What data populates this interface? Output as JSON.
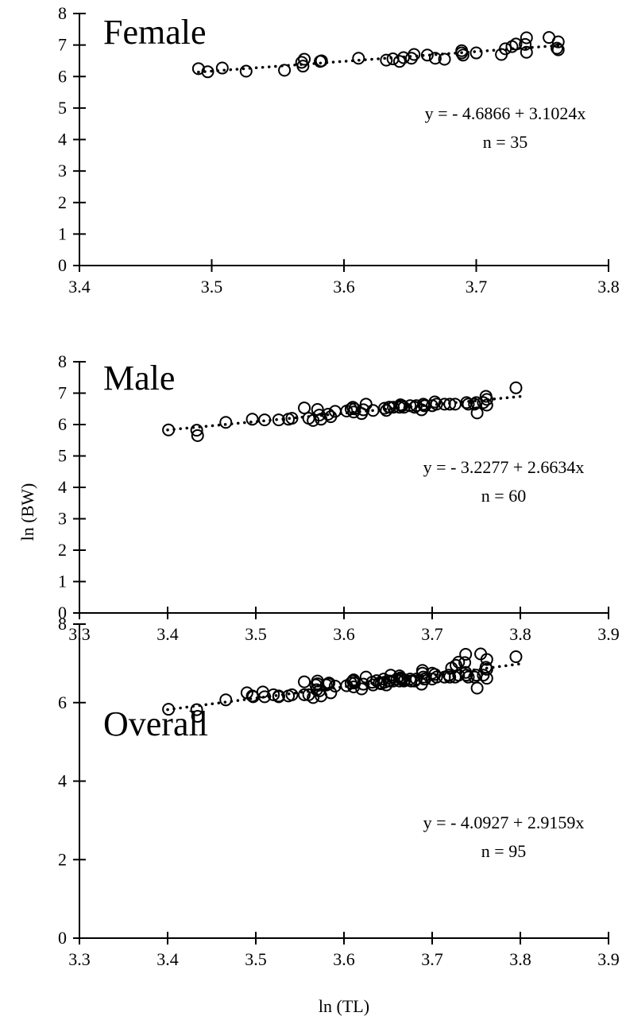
{
  "figure": {
    "xlabel": "ln (TL)",
    "ylabel": "ln (BW)"
  },
  "chart_data": [
    {
      "type": "scatter",
      "title": "Female",
      "xlim": [
        3.4,
        3.8
      ],
      "ylim": [
        0,
        8
      ],
      "xticks": [
        "3.4",
        "3.5",
        "3.6",
        "3.7",
        "3.8"
      ],
      "yticks": [
        "0",
        "1",
        "2",
        "3",
        "4",
        "5",
        "6",
        "7",
        "8"
      ],
      "equation": "y = - 4.6866 + 3.1024x",
      "n_label": "n = 35",
      "fit": {
        "intercept": -4.6866,
        "slope": 3.1024,
        "x_range": [
          3.49,
          3.765
        ]
      },
      "points": {
        "x": [
          3.49,
          3.497,
          3.508,
          3.526,
          3.555,
          3.568,
          3.57,
          3.569,
          3.582,
          3.583,
          3.611,
          3.632,
          3.637,
          3.642,
          3.645,
          3.651,
          3.653,
          3.663,
          3.669,
          3.676,
          3.689,
          3.689,
          3.69,
          3.719,
          3.722,
          3.727,
          3.73,
          3.738,
          3.738,
          3.737,
          3.755,
          3.762,
          3.762,
          3.761,
          3.7
        ],
        "y": [
          6.25,
          6.15,
          6.27,
          6.17,
          6.2,
          6.45,
          6.55,
          6.33,
          6.48,
          6.5,
          6.58,
          6.52,
          6.56,
          6.48,
          6.6,
          6.58,
          6.7,
          6.68,
          6.58,
          6.55,
          6.75,
          6.82,
          6.68,
          6.7,
          6.88,
          6.95,
          7.03,
          7.23,
          6.77,
          7.02,
          7.24,
          6.85,
          7.1,
          6.9,
          6.75
        ]
      }
    },
    {
      "type": "scatter",
      "title": "Male",
      "xlim": [
        3.3,
        3.9
      ],
      "ylim": [
        0,
        8
      ],
      "xticks": [
        "3.3",
        "3.4",
        "3.5",
        "3.6",
        "3.7",
        "3.8",
        "3.9"
      ],
      "yticks": [
        "0",
        "1",
        "2",
        "3",
        "4",
        "5",
        "6",
        "7",
        "8"
      ],
      "equation": "y = - 3.2277 + 2.6634x",
      "n_label": "n = 60",
      "fit": {
        "intercept": -3.2277,
        "slope": 2.6634,
        "x_range": [
          3.4,
          3.8
        ]
      },
      "points": {
        "x": [
          3.401,
          3.433,
          3.434,
          3.466,
          3.496,
          3.51,
          3.526,
          3.537,
          3.541,
          3.555,
          3.565,
          3.57,
          3.572,
          3.574,
          3.582,
          3.585,
          3.59,
          3.603,
          3.608,
          3.611,
          3.612,
          3.622,
          3.625,
          3.633,
          3.646,
          3.648,
          3.651,
          3.652,
          3.656,
          3.663,
          3.664,
          3.665,
          3.666,
          3.668,
          3.675,
          3.68,
          3.682,
          3.688,
          3.69,
          3.691,
          3.692,
          3.7,
          3.703,
          3.705,
          3.714,
          3.72,
          3.726,
          3.739,
          3.741,
          3.748,
          3.75,
          3.751,
          3.758,
          3.761,
          3.762,
          3.762,
          3.795,
          3.61,
          3.62,
          3.56
        ],
        "y": [
          5.83,
          5.82,
          5.65,
          6.07,
          6.17,
          6.15,
          6.15,
          6.17,
          6.2,
          6.53,
          6.13,
          6.48,
          6.3,
          6.17,
          6.33,
          6.25,
          6.42,
          6.43,
          6.5,
          6.4,
          6.5,
          6.47,
          6.65,
          6.45,
          6.52,
          6.45,
          6.55,
          6.55,
          6.55,
          6.55,
          6.63,
          6.6,
          6.6,
          6.55,
          6.6,
          6.55,
          6.6,
          6.47,
          6.65,
          6.6,
          6.6,
          6.6,
          6.72,
          6.65,
          6.65,
          6.65,
          6.65,
          6.7,
          6.65,
          6.65,
          6.7,
          6.37,
          6.7,
          6.9,
          6.8,
          6.62,
          7.17,
          6.55,
          6.35,
          6.2
        ]
      }
    },
    {
      "type": "scatter",
      "title": "Overall",
      "xlim": [
        3.3,
        3.9
      ],
      "ylim": [
        0,
        8
      ],
      "xticks": [
        "3.3",
        "3.4",
        "3.5",
        "3.6",
        "3.7",
        "3.8",
        "3.9"
      ],
      "yticks": [
        "0",
        "2",
        "4",
        "6",
        "8"
      ],
      "equation": "y = - 4.0927 + 2.9159x",
      "n_label": "n = 95",
      "fit": {
        "intercept": -4.0927,
        "slope": 2.9159,
        "x_range": [
          3.4,
          3.8
        ]
      },
      "points": {
        "x": [
          3.401,
          3.433,
          3.434,
          3.466,
          3.49,
          3.496,
          3.497,
          3.508,
          3.51,
          3.526,
          3.526,
          3.537,
          3.541,
          3.555,
          3.555,
          3.565,
          3.568,
          3.57,
          3.569,
          3.57,
          3.572,
          3.574,
          3.582,
          3.583,
          3.585,
          3.59,
          3.603,
          3.608,
          3.611,
          3.611,
          3.612,
          3.622,
          3.625,
          3.632,
          3.633,
          3.637,
          3.642,
          3.645,
          3.646,
          3.648,
          3.651,
          3.652,
          3.653,
          3.656,
          3.663,
          3.663,
          3.664,
          3.665,
          3.666,
          3.668,
          3.669,
          3.675,
          3.676,
          3.68,
          3.682,
          3.688,
          3.689,
          3.689,
          3.69,
          3.691,
          3.692,
          3.7,
          3.703,
          3.705,
          3.714,
          3.719,
          3.72,
          3.722,
          3.726,
          3.727,
          3.73,
          3.738,
          3.738,
          3.739,
          3.741,
          3.748,
          3.75,
          3.751,
          3.755,
          3.758,
          3.761,
          3.762,
          3.762,
          3.762,
          3.795,
          3.61,
          3.62,
          3.56,
          3.73,
          3.737,
          3.7,
          3.64,
          3.52,
          3.58,
          3.66
        ],
        "y": [
          5.83,
          5.82,
          5.65,
          6.07,
          6.25,
          6.17,
          6.15,
          6.27,
          6.15,
          6.17,
          6.15,
          6.17,
          6.2,
          6.53,
          6.2,
          6.13,
          6.45,
          6.55,
          6.33,
          6.48,
          6.3,
          6.17,
          6.48,
          6.5,
          6.25,
          6.42,
          6.43,
          6.5,
          6.58,
          6.4,
          6.5,
          6.47,
          6.65,
          6.52,
          6.45,
          6.56,
          6.48,
          6.6,
          6.52,
          6.45,
          6.55,
          6.55,
          6.7,
          6.55,
          6.68,
          6.55,
          6.63,
          6.6,
          6.6,
          6.55,
          6.58,
          6.6,
          6.55,
          6.55,
          6.6,
          6.47,
          6.75,
          6.82,
          6.65,
          6.6,
          6.6,
          6.6,
          6.72,
          6.65,
          6.65,
          6.7,
          6.65,
          6.88,
          6.65,
          6.95,
          7.03,
          7.23,
          6.77,
          6.7,
          6.65,
          6.65,
          6.7,
          6.37,
          7.24,
          6.7,
          6.9,
          6.85,
          7.1,
          6.62,
          7.17,
          6.55,
          6.35,
          6.2,
          6.7,
          7.02,
          6.75,
          6.5,
          6.2,
          6.45,
          6.6
        ]
      }
    }
  ]
}
